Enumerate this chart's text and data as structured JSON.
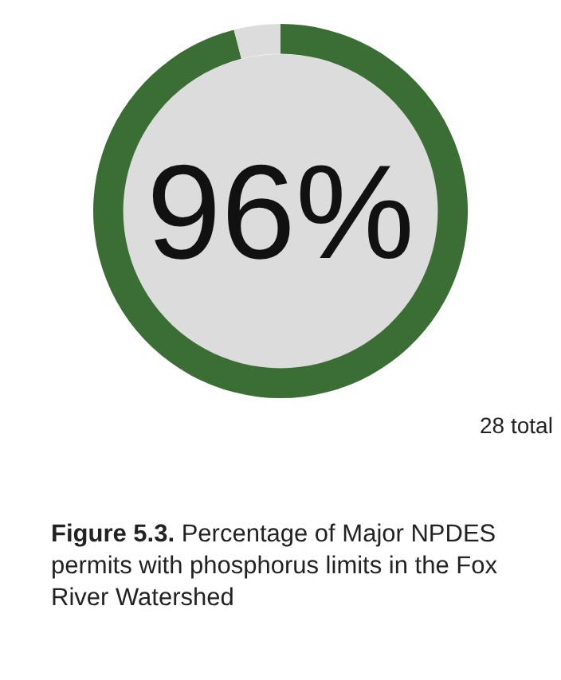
{
  "chart_data": {
    "type": "donut",
    "title": "Figure 5.3.",
    "subtitle": "Percentage of Major NPDES permits with phosphorus limits in the Fox River Watershed",
    "categories": [
      null,
      null
    ],
    "values": [
      96,
      4
    ],
    "colors": [
      "#3b6e34",
      "#dcdcdc"
    ],
    "value_labels": [
      "96%",
      null
    ],
    "annotations": [
      "28 total"
    ],
    "legend": false
  }
}
